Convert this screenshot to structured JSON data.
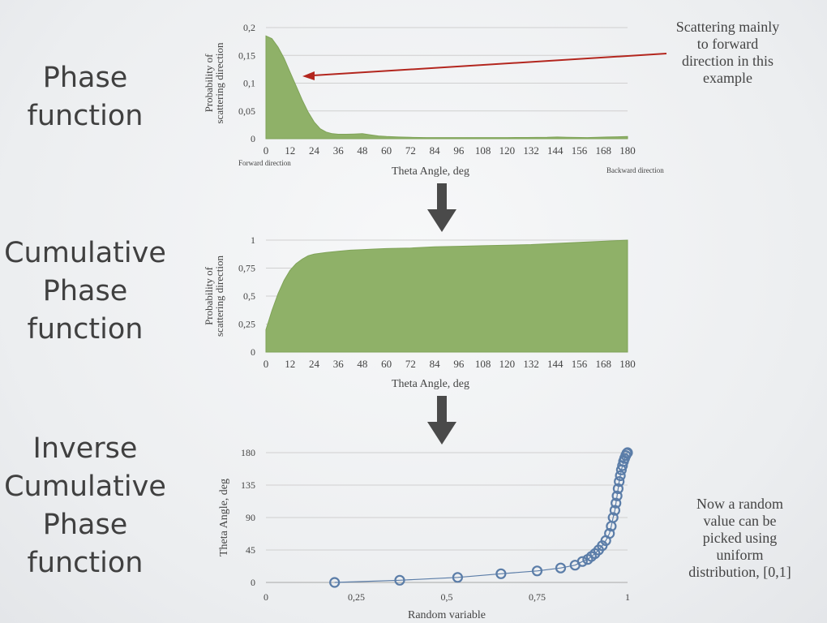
{
  "sections": [
    {
      "title": [
        "Phase",
        "function"
      ]
    },
    {
      "title": [
        "Cumulative",
        "Phase",
        "function"
      ]
    },
    {
      "title": [
        "Inverse",
        "Cumulative",
        "Phase",
        "function"
      ]
    }
  ],
  "notes": {
    "scatter": [
      "Scattering mainly",
      "to forward",
      "direction in this",
      "example"
    ],
    "random": [
      "Now a random",
      "value can be",
      "picked using",
      "uniform",
      "distribution, [0,1]"
    ]
  },
  "colors": {
    "area": "#8fb168",
    "area_edge": "#7fa358",
    "scatter": "#5b7da8",
    "arrow": "#b3261e",
    "down_arrow": "#4a4a4a",
    "grid": "#d0d0d0"
  },
  "chart_data": [
    {
      "type": "area",
      "ylabel": [
        "Probability of",
        "scattering direction"
      ],
      "xlabel": "Theta Angle, deg",
      "x_ticks": [
        "0",
        "12",
        "24",
        "36",
        "48",
        "60",
        "72",
        "84",
        "96",
        "108",
        "120",
        "132",
        "144",
        "156",
        "168",
        "180"
      ],
      "y_ticks": [
        "0",
        "0,05",
        "0,1",
        "0,15",
        "0,2"
      ],
      "ylim": [
        0,
        0.2
      ],
      "xlim": [
        0,
        180
      ],
      "annotations": {
        "forward": "Forward direction",
        "backward": "Backward direction"
      },
      "x": [
        0,
        3,
        6,
        9,
        12,
        15,
        18,
        21,
        24,
        27,
        30,
        33,
        36,
        40,
        44,
        48,
        52,
        56,
        60,
        66,
        72,
        80,
        90,
        100,
        110,
        120,
        130,
        140,
        145,
        150,
        160,
        170,
        180
      ],
      "values": [
        0.185,
        0.18,
        0.165,
        0.145,
        0.12,
        0.095,
        0.07,
        0.048,
        0.03,
        0.018,
        0.012,
        0.009,
        0.008,
        0.008,
        0.0085,
        0.009,
        0.007,
        0.005,
        0.004,
        0.003,
        0.0025,
        0.002,
        0.002,
        0.002,
        0.002,
        0.002,
        0.0022,
        0.0025,
        0.003,
        0.0025,
        0.002,
        0.003,
        0.004
      ]
    },
    {
      "type": "area",
      "ylabel": [
        "Probability of",
        "scattering direction"
      ],
      "xlabel": "Theta Angle, deg",
      "x_ticks": [
        "0",
        "12",
        "24",
        "36",
        "48",
        "60",
        "72",
        "84",
        "96",
        "108",
        "120",
        "132",
        "144",
        "156",
        "168",
        "180"
      ],
      "y_ticks": [
        "0",
        "0,25",
        "0,5",
        "0,75",
        "1"
      ],
      "ylim": [
        0,
        1
      ],
      "xlim": [
        0,
        180
      ],
      "x": [
        0,
        3,
        6,
        9,
        12,
        15,
        18,
        21,
        24,
        30,
        36,
        42,
        48,
        54,
        60,
        72,
        84,
        96,
        108,
        120,
        132,
        144,
        156,
        168,
        180
      ],
      "values": [
        0.2,
        0.37,
        0.52,
        0.64,
        0.73,
        0.79,
        0.83,
        0.86,
        0.875,
        0.89,
        0.9,
        0.91,
        0.915,
        0.92,
        0.925,
        0.93,
        0.94,
        0.945,
        0.95,
        0.955,
        0.96,
        0.97,
        0.98,
        0.99,
        1.0
      ]
    },
    {
      "type": "scatter",
      "ylabel": "Theta Angle, deg",
      "xlabel": "Random variable",
      "x_ticks": [
        "0",
        "0,25",
        "0,5",
        "0,75",
        "1"
      ],
      "y_ticks": [
        "0",
        "45",
        "90",
        "135",
        "180"
      ],
      "xlim": [
        0,
        1
      ],
      "ylim": [
        0,
        180
      ],
      "x": [
        0.19,
        0.37,
        0.53,
        0.65,
        0.75,
        0.815,
        0.855,
        0.875,
        0.89,
        0.9,
        0.91,
        0.92,
        0.93,
        0.94,
        0.95,
        0.955,
        0.96,
        0.965,
        0.968,
        0.971,
        0.974,
        0.977,
        0.98,
        0.983,
        0.986,
        0.989,
        0.992,
        0.995,
        0.998,
        1.0
      ],
      "y": [
        0,
        3,
        7,
        12,
        16,
        20,
        24,
        29,
        32,
        36,
        40,
        45,
        51,
        58,
        68,
        78,
        90,
        100,
        110,
        120,
        130,
        140,
        148,
        156,
        162,
        168,
        172,
        176,
        179,
        180
      ]
    }
  ]
}
